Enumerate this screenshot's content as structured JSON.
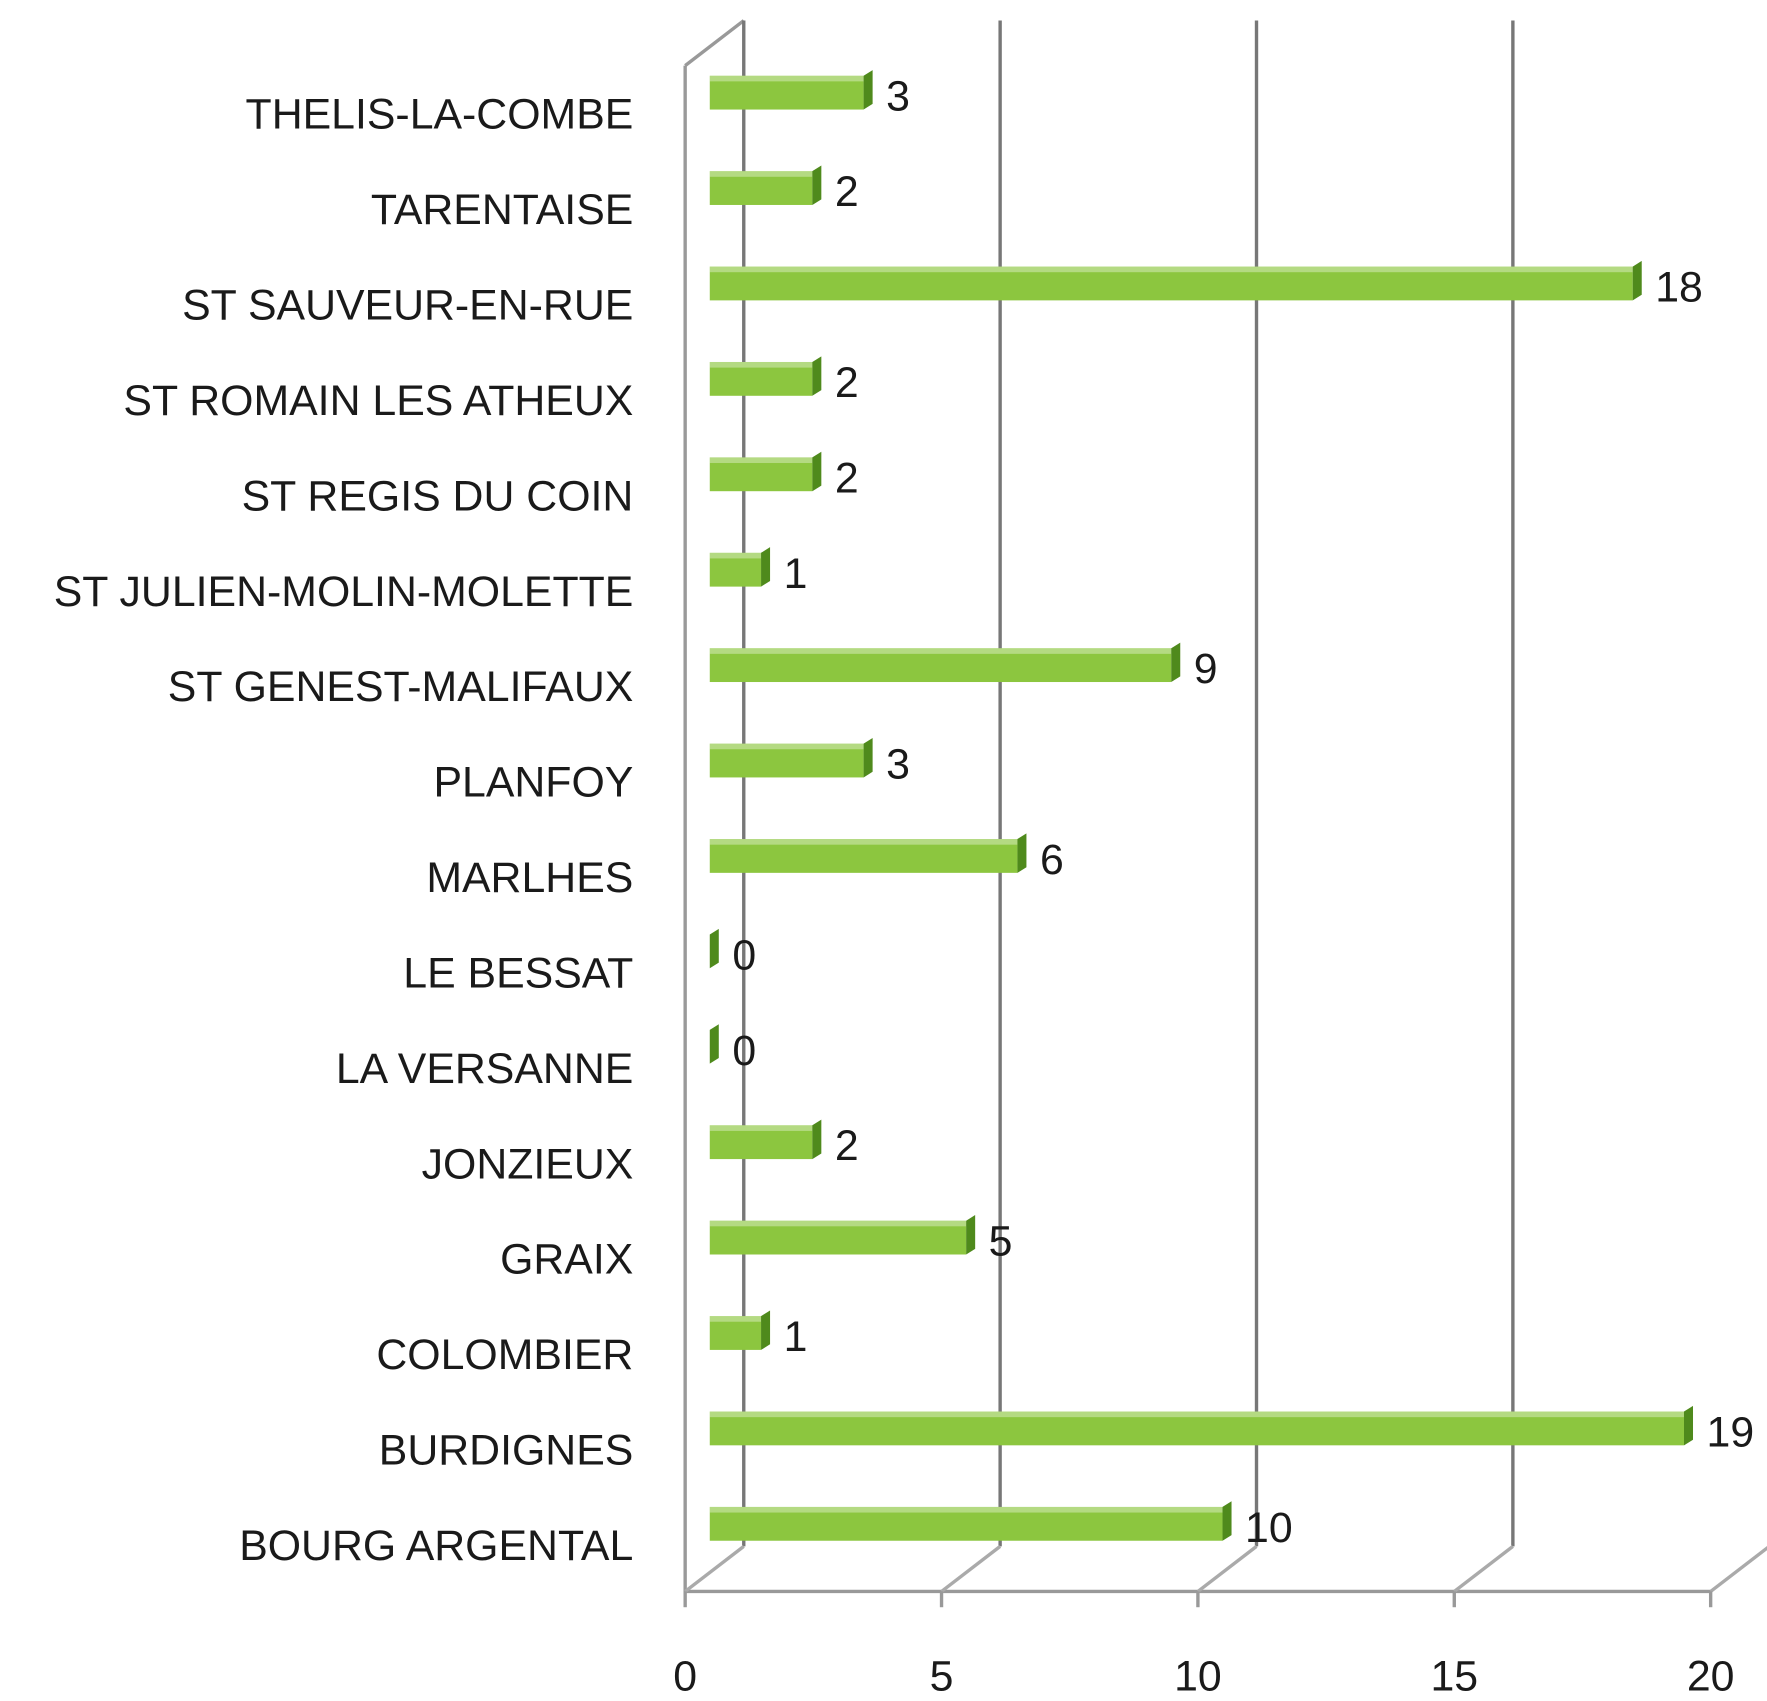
{
  "chart_data": {
    "type": "bar",
    "orientation": "horizontal",
    "categories": [
      "THELIS-LA-COMBE",
      "TARENTAISE",
      "ST SAUVEUR-EN-RUE",
      "ST ROMAIN LES ATHEUX",
      "ST REGIS DU COIN",
      "ST JULIEN-MOLIN-MOLETTE",
      "ST GENEST-MALIFAUX",
      "PLANFOY",
      "MARLHES",
      "LE BESSAT",
      "LA VERSANNE",
      "JONZIEUX",
      "GRAIX",
      "COLOMBIER",
      "BURDIGNES",
      "BOURG ARGENTAL"
    ],
    "values": [
      3,
      2,
      18,
      2,
      2,
      1,
      9,
      3,
      6,
      0,
      0,
      2,
      5,
      1,
      19,
      10
    ],
    "color": "#8cc63f",
    "xlim": [
      0,
      20
    ],
    "xticks": [
      0,
      5,
      10,
      15,
      20
    ],
    "grid": true
  }
}
